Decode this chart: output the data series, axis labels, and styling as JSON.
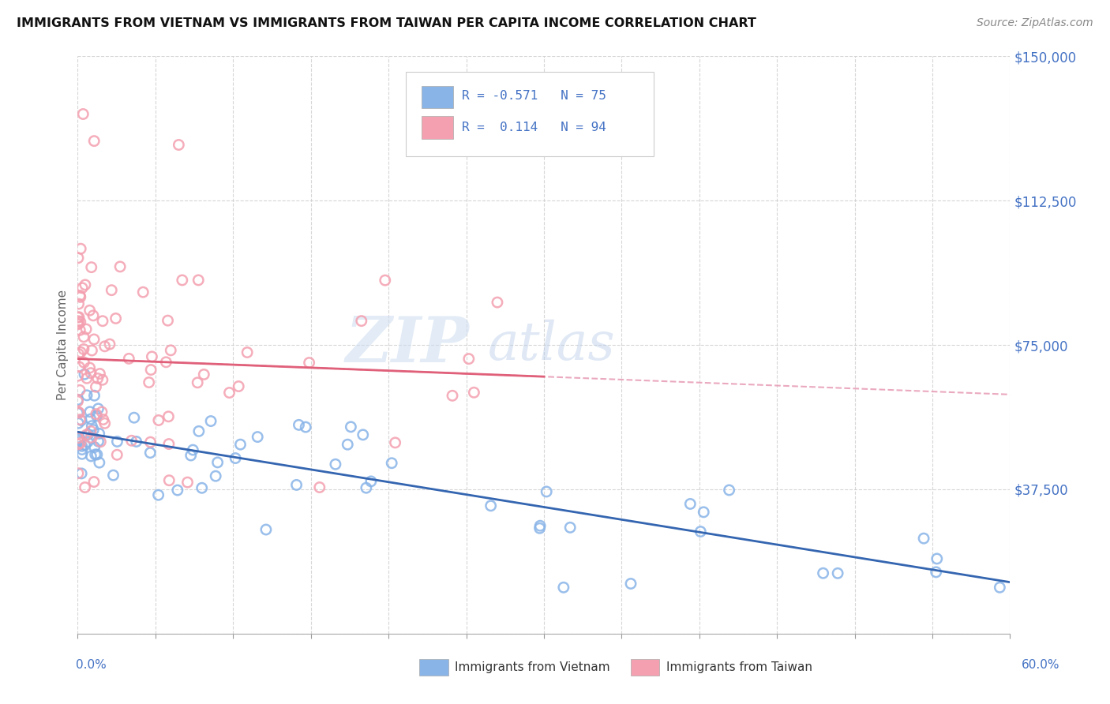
{
  "title": "IMMIGRANTS FROM VIETNAM VS IMMIGRANTS FROM TAIWAN PER CAPITA INCOME CORRELATION CHART",
  "source": "Source: ZipAtlas.com",
  "ylabel": "Per Capita Income",
  "yticks": [
    0,
    37500,
    75000,
    112500,
    150000
  ],
  "ytick_labels": [
    "",
    "$37,500",
    "$75,000",
    "$112,500",
    "$150,000"
  ],
  "xmin": 0.0,
  "xmax": 0.6,
  "ymin": 0,
  "ymax": 150000,
  "vietnam_R": -0.571,
  "vietnam_N": 75,
  "taiwan_R": 0.114,
  "taiwan_N": 94,
  "vietnam_color": "#89b4e8",
  "taiwan_color": "#f4a0b0",
  "vietnam_line_color": "#3465b0",
  "taiwan_line_color": "#e0607a",
  "taiwan_dashed_color": "#e8a0b8",
  "background_color": "#ffffff",
  "grid_color": "#cccccc",
  "title_color": "#111111",
  "watermark_zip": "ZIP",
  "watermark_atlas": "atlas",
  "legend_color": "#4472c4",
  "axis_label_color": "#4472c4"
}
